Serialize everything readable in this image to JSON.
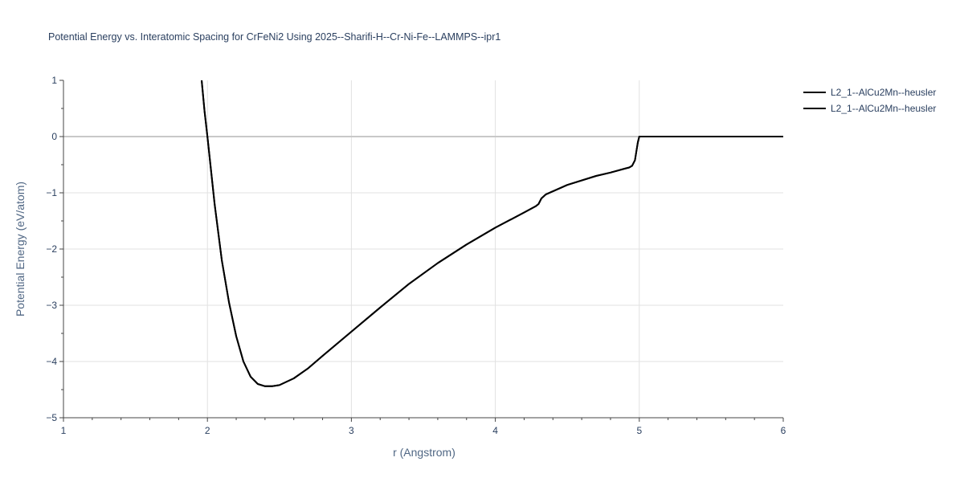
{
  "chart_data": {
    "type": "line",
    "title": "Potential Energy vs. Interatomic Spacing for CrFeNi2 Using 2025--Sharifi-H--Cr-Ni-Fe--LAMMPS--ipr1",
    "xlabel": "r (Angstrom)",
    "ylabel": "Potential Energy (eV/atom)",
    "xlim": [
      1,
      6
    ],
    "ylim": [
      -5,
      1
    ],
    "x_ticks": [
      "1",
      "2",
      "3",
      "4",
      "5",
      "6"
    ],
    "y_ticks": [
      "1",
      "0",
      "−1",
      "−2",
      "−3",
      "−4",
      "−5"
    ],
    "grid": true,
    "legend_position": "top-right",
    "series": [
      {
        "name": "L2_1--AlCu2Mn--heusler",
        "color": "#000000",
        "x": [
          1.96,
          1.98,
          2.0,
          2.05,
          2.1,
          2.15,
          2.2,
          2.25,
          2.3,
          2.35,
          2.4,
          2.45,
          2.5,
          2.6,
          2.7,
          2.8,
          3.0,
          3.2,
          3.4,
          3.6,
          3.8,
          4.0,
          4.2,
          4.28,
          4.3,
          4.32,
          4.35,
          4.5,
          4.7,
          4.8,
          4.9,
          4.93,
          4.95,
          4.97,
          4.99,
          5.0,
          5.2,
          5.5,
          5.8,
          6.0
        ],
        "y": [
          1.0,
          0.45,
          0.0,
          -1.2,
          -2.2,
          -2.95,
          -3.55,
          -4.0,
          -4.27,
          -4.4,
          -4.44,
          -4.44,
          -4.42,
          -4.3,
          -4.12,
          -3.9,
          -3.47,
          -3.04,
          -2.62,
          -2.25,
          -1.92,
          -1.62,
          -1.35,
          -1.24,
          -1.2,
          -1.1,
          -1.03,
          -0.86,
          -0.7,
          -0.64,
          -0.57,
          -0.55,
          -0.52,
          -0.42,
          -0.1,
          0.0,
          0.0,
          0.0,
          0.0,
          0.0
        ]
      },
      {
        "name": "L2_1--AlCu2Mn--heusler",
        "color": "#000000",
        "x": [
          1.96,
          1.98,
          2.0,
          2.05,
          2.1,
          2.15,
          2.2,
          2.25,
          2.3,
          2.35,
          2.4,
          2.45,
          2.5,
          2.6,
          2.7,
          2.8,
          3.0,
          3.2,
          3.4,
          3.6,
          3.8,
          4.0,
          4.2,
          4.28,
          4.3,
          4.32,
          4.35,
          4.5,
          4.7,
          4.8,
          4.9,
          4.93,
          4.95,
          4.97,
          4.99,
          5.0,
          5.2,
          5.5,
          5.8,
          6.0
        ],
        "y": [
          1.0,
          0.45,
          0.0,
          -1.2,
          -2.2,
          -2.95,
          -3.55,
          -4.0,
          -4.27,
          -4.4,
          -4.44,
          -4.44,
          -4.42,
          -4.3,
          -4.12,
          -3.9,
          -3.47,
          -3.04,
          -2.62,
          -2.25,
          -1.92,
          -1.62,
          -1.35,
          -1.24,
          -1.2,
          -1.1,
          -1.03,
          -0.86,
          -0.7,
          -0.64,
          -0.57,
          -0.55,
          -0.52,
          -0.42,
          -0.1,
          0.0,
          0.0,
          0.0,
          0.0,
          0.0
        ]
      }
    ]
  }
}
